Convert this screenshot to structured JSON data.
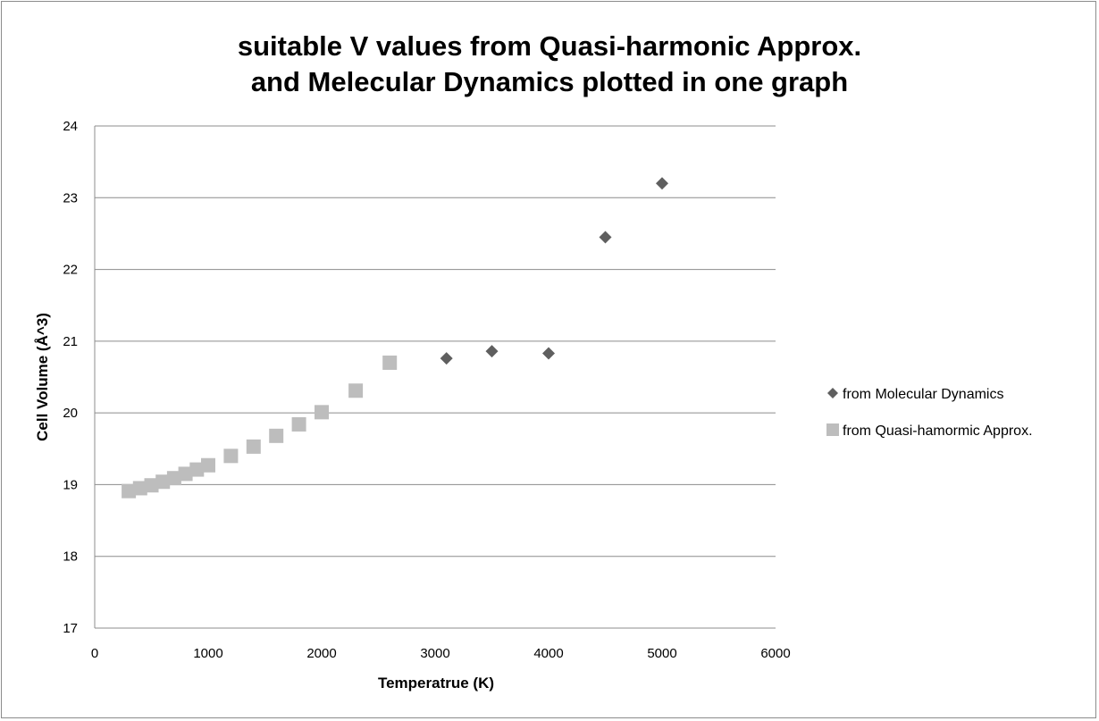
{
  "chart_data": {
    "type": "scatter",
    "title_lines": [
      "suitable V values from Quasi-harmonic Approx.",
      "and Melecular Dynamics plotted in one graph"
    ],
    "xlabel": "Temperatrue (K)",
    "ylabel": "Cell Volume (Å^3)",
    "xlim": [
      0,
      6000
    ],
    "ylim": [
      17,
      24
    ],
    "x_ticks": [
      0,
      1000,
      2000,
      3000,
      4000,
      5000,
      6000
    ],
    "y_ticks": [
      17,
      18,
      19,
      20,
      21,
      22,
      23,
      24
    ],
    "grid": "horizontal",
    "legend_position": "right",
    "series": [
      {
        "name": "from Molecular Dynamics",
        "marker": "diamond",
        "color": "#5f5f5f",
        "x": [
          3100,
          3500,
          4000,
          4500,
          5000
        ],
        "y": [
          20.76,
          20.86,
          20.83,
          22.45,
          23.2
        ]
      },
      {
        "name": "from Quasi-hamormic Approx.",
        "marker": "square",
        "color": "#bdbdbd",
        "x": [
          300,
          400,
          500,
          600,
          700,
          800,
          900,
          1000,
          1200,
          1400,
          1600,
          1800,
          2000,
          2300,
          2600
        ],
        "y": [
          18.91,
          18.95,
          18.99,
          19.04,
          19.09,
          19.15,
          19.21,
          19.27,
          19.4,
          19.53,
          19.68,
          19.84,
          20.01,
          20.31,
          20.7
        ]
      }
    ]
  }
}
